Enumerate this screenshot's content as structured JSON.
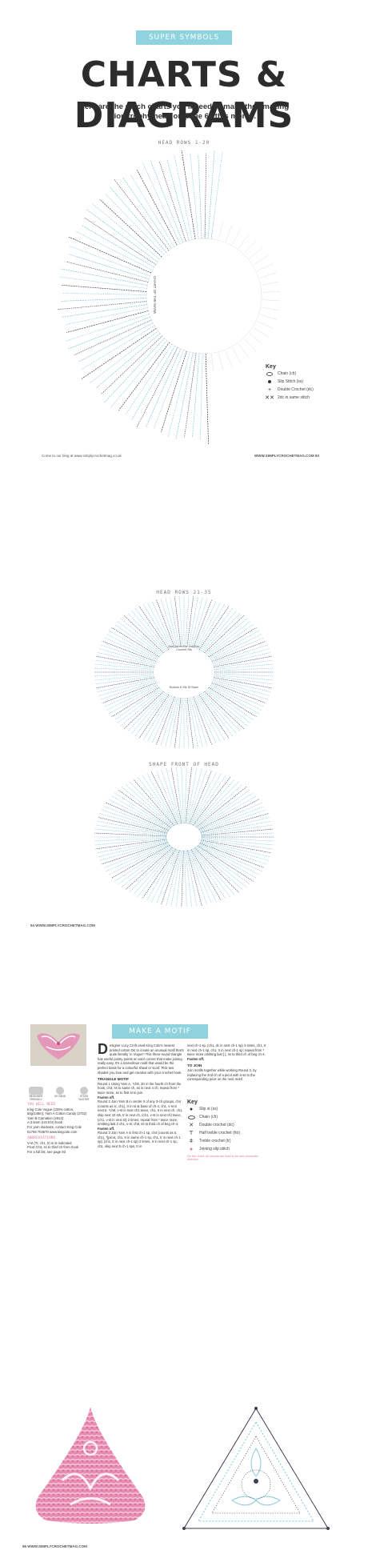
{
  "page1": {
    "banner": "SUPER SYMBOLS",
    "title": "CHARTS & DIAGRAMS",
    "intro": "Here are the stitch charts you'll need to make the amazing lion trophy head on page 66 this month.",
    "chart_label": "HEAD ROWS 1-20",
    "chart_inner_text": "CHART OF THE MANE",
    "key": {
      "title": "Key",
      "items": [
        {
          "icon": "chain-symbol-icon",
          "label": "Chain (ch)"
        },
        {
          "icon": "slip-stitch-symbol-icon",
          "label": "Slip Stitch (ss)"
        },
        {
          "icon": "double-crochet-symbol-icon",
          "label": "Double Crochet (dc)"
        },
        {
          "icon": "two-dc-same-stitch-icon",
          "label": "2dc in same stitch"
        }
      ]
    },
    "footer_left": "Come to our blog at www.simplycrochetmag.co.uk",
    "footer_right": "WWW.SIMPLYCROCHETMAG.COM 93"
  },
  "page2": {
    "chart1_label": "HEAD ROWS 21-35",
    "chart1_inner_top": "Join 1st fa Ear 2nd Ear, Crochet Sts",
    "chart1_inner_bottom": "Bottom 8 Sts Sf Base",
    "chart2_label": "SHAPE FRONT OF HEAD",
    "footer_left": "94 WWW.SIMPLYCROCHETMAG.COM"
  },
  "page3": {
    "banner": "MAKE A MOTIF",
    "intro_dropcap": "D",
    "intro": "esigner Lucy Croft used King Cole's newest printed cotton DK to create an unusual motif that's quite literally 'in Vogue'! This three-round triangle has useful pointy points on each corner that make joining really easy. It's a marvellous motif that would be the perfect basis for a colourful shawl or scarf. Pick two shades you love and get creative with your crochet hook.",
    "badges": [
      "BEGINNER FRIENDLY",
      "UK HAND",
      "STASH BUSTER"
    ],
    "you_will_need_title": "YOU WILL NEED",
    "materials": [
      "King Cole Vogue (100% cotton, 50g/148m), Yarn A Cotton Candy (2732) Yarn B Carnation (2913)",
      "A 3.5mm (US E/4) hook",
      "For yarn stockists, contact King Cole 01756 703670 www.kingcole.com"
    ],
    "abbrev_title": "ABBREVIATIONS",
    "abbreviations": [
      "V-st (Tr, ch1, tr) in st indicated",
      "Picot Ch3, ss to third ch from hook",
      "For a full list, see page 93"
    ],
    "triangle_heading": "TRIANGLE MOTIF",
    "round_paragraphs": [
      "Round 1 Using Yarn A, *ch8, 2tr in the fourth ch from the hook, ch3, ss to same ch, ss in next 4 ch; repeat from * twice more, ss to first st to join.",
      "Fasten off.",
      "Round 2 Join Yarn B in centre tr of any 3-ch groups, ch4 (counts as tc, ch1), tr in st at base of ch-4, ch1, v-st in next tr, *ch8, v-st in next ch1 twice, ch1, tr in next ch, ch1, skip next 10 sts, tr in next ch, (ch1, v-st in next ch) twice, (ch1, v-st in next st) 2 times; repeat from * twice more, omitting last 2 ch1, v-st, ch8, ss to third ch of beg ch-4.",
      "Fasten off.",
      "Round 3 Join Yarn A in first ch-1 sp, ch4 (counts as tr, ch1), *[picot, ch1, tr in same ch-1 sp, ch1, tr in next ch-1 sp], (ch1, tr in next ch-1 sp) 2 times, tr in next ch-1 sp, ch1, skip next 5 ch-1 sps, tr in"
    ],
    "col3_paragraphs": [
      "next ch-1 sp, (ch1, dc in next ch-1 sp) 3 times, ch1, tr in next ch-1 sp, ch1, tr in next ch-1 sp; repeat from * twice more omitting last [ ], ss to third ch of beg ch-4.",
      "Fasten off."
    ],
    "to_join_heading": "TO JOIN",
    "to_join_text": "Join motifs together while working Round 3, by replacing the 2nd ch of a picot with a ss to the corresponding picot on the next motif.",
    "key": {
      "title": "Key",
      "items": [
        {
          "icon": "slip-stitch-dot-icon",
          "label": "Slip st (ss)"
        },
        {
          "icon": "chain-oval-icon",
          "label": "Chain (ch)"
        },
        {
          "icon": "double-crochet-cross-icon",
          "label": "Double crochet (dc)"
        },
        {
          "icon": "half-treble-icon",
          "label": "Half treble crochet (htr)"
        },
        {
          "icon": "treble-icon",
          "label": "Treble crochet (tr)"
        },
        {
          "icon": "joining-slip-stitch-icon",
          "label": "Joining slip stitch"
        }
      ],
      "note": "On the chart, all rounds are read in an anti-clockwise direction"
    },
    "footer_left": "96 WWW.SIMPLYCROCHETMAG.COM"
  },
  "colors": {
    "banner": "#8fd3de",
    "stitch_blue": "#7ec6d6",
    "stitch_dark": "#3a3f52",
    "pink": "#e47aa9",
    "pink_light": "#f6c9dc"
  }
}
